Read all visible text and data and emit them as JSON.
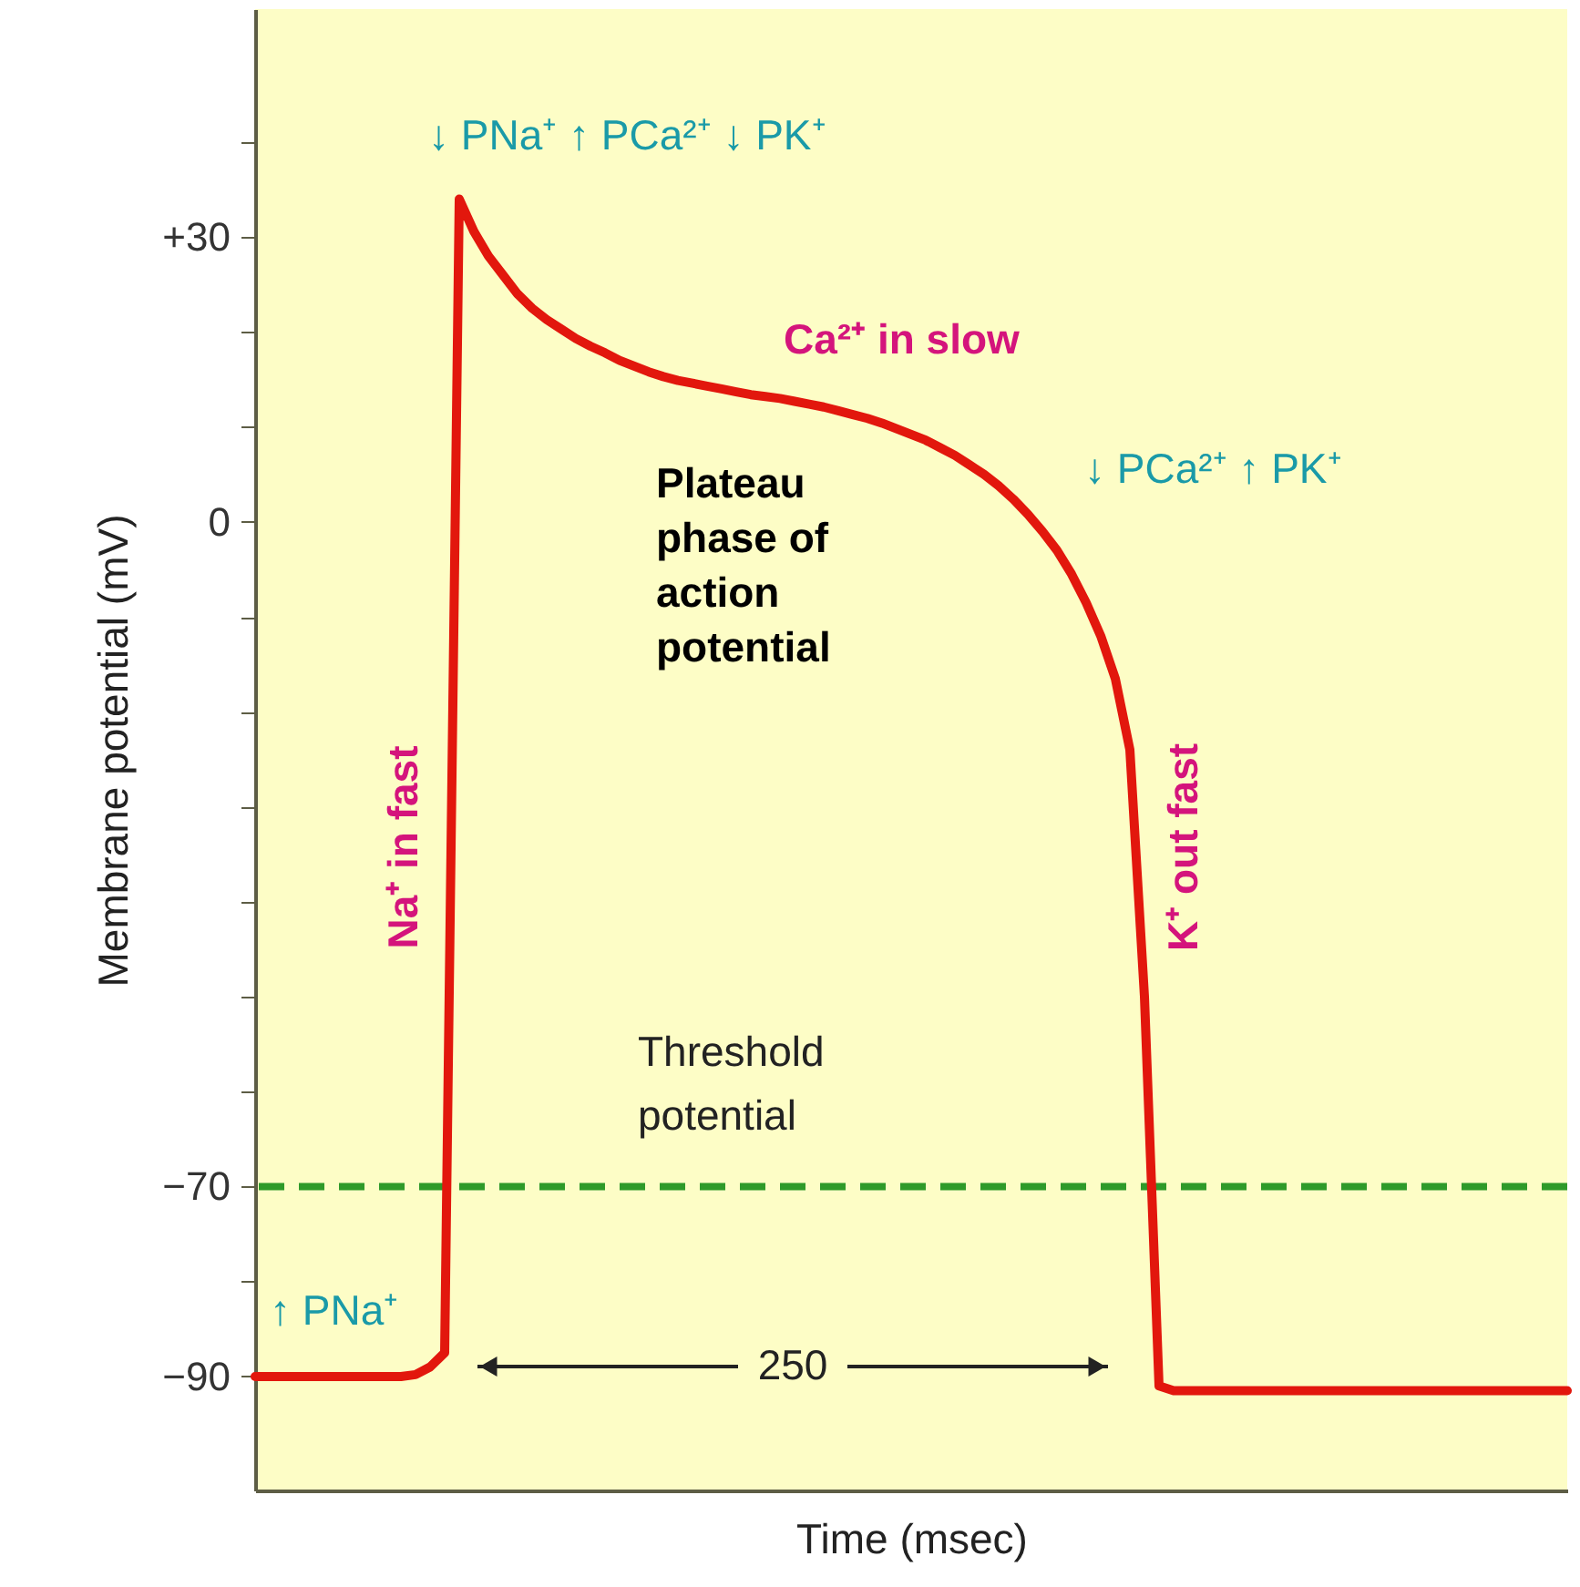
{
  "chart_data": {
    "type": "line",
    "xlabel": "Time (msec)",
    "ylabel": "Membrane potential (mV)",
    "categories": [
      null,
      null,
      null,
      null,
      null,
      null,
      null,
      null,
      null,
      null,
      null,
      null,
      null,
      null,
      null,
      null,
      null,
      null,
      null,
      null,
      null,
      null,
      null,
      null,
      null,
      null,
      null,
      null,
      null,
      null,
      null,
      null,
      null,
      null,
      null,
      null,
      null,
      null,
      null,
      null,
      null,
      null,
      null,
      null,
      null,
      null,
      null,
      null,
      null,
      null,
      null,
      null,
      null,
      null,
      null,
      null,
      null,
      null,
      null,
      null,
      null,
      null,
      null,
      null,
      null,
      null,
      null,
      null,
      null,
      null,
      null,
      null,
      null,
      null,
      null,
      null,
      null,
      null,
      null,
      null,
      null,
      null,
      null,
      null,
      null,
      null,
      null,
      null,
      null,
      null,
      null
    ],
    "series": [
      {
        "color": "#e2170d",
        "values": [
          -90,
          -90,
          -90,
          -90,
          -90,
          -90,
          -90,
          -90,
          -90,
          -90,
          -90,
          -89.8,
          -89,
          -87.5,
          34,
          30.6,
          28,
          26,
          24,
          22.5,
          21.3,
          20.3,
          19.3,
          18.5,
          17.8,
          17,
          16.4,
          15.8,
          15.3,
          14.9,
          14.6,
          14.3,
          14,
          13.7,
          13.4,
          13.2,
          13,
          12.7,
          12.4,
          12.1,
          11.7,
          11.3,
          10.9,
          10.4,
          9.8,
          9.2,
          8.6,
          7.8,
          7,
          6,
          5,
          3.8,
          2.4,
          0.8,
          -1,
          -3,
          -5.5,
          -8.5,
          -12,
          -16.5,
          -24,
          -50,
          -91,
          -91.5,
          -91.5,
          -91.5,
          -91.5,
          -91.5,
          -91.5,
          -91.5,
          -91.5,
          -91.5,
          -91.5,
          -91.5,
          -91.5,
          -91.5,
          -91.5,
          -91.5,
          -91.5,
          -91.5,
          -91.5,
          -91.5,
          -91.5,
          -91.5,
          -91.5,
          -91.5,
          -91.5,
          -91.5,
          -91.5,
          -91.5,
          -91.5
        ]
      }
    ],
    "ylim": [
      -102,
      54
    ],
    "yticks": [
      {
        "value": 40,
        "label": null
      },
      {
        "value": 30,
        "label": "+30"
      },
      {
        "value": 20,
        "label": null
      },
      {
        "value": 10,
        "label": null
      },
      0,
      {
        "value": -10,
        "label": null
      },
      {
        "value": -20,
        "label": null
      },
      {
        "value": -30,
        "label": null
      },
      {
        "value": -40,
        "label": null
      },
      {
        "value": -50,
        "label": null
      },
      {
        "value": -60,
        "label": null
      },
      {
        "value": -70,
        "label": "−70"
      },
      {
        "value": -80,
        "label": null
      },
      {
        "value": -90,
        "label": "−90"
      }
    ],
    "ref_lines": [
      {
        "axis": "y",
        "value": -70,
        "label": "Threshold potential",
        "color": "#2e9a2a",
        "line_style": "dashed"
      }
    ],
    "annotations": [
      "↓ PNa⁺ ↑ PCa²⁺ ↓ PK⁺",
      "Ca²⁺ in slow",
      "Plateau phase of action potential",
      "↓ PCa²⁺ ↑ PK⁺",
      "Na⁺ in fast",
      "K⁺ out fast",
      "↑ PNa⁺",
      "250"
    ],
    "grid": false,
    "marker": "none",
    "line_style": "solid",
    "tick_labels": "y"
  }
}
